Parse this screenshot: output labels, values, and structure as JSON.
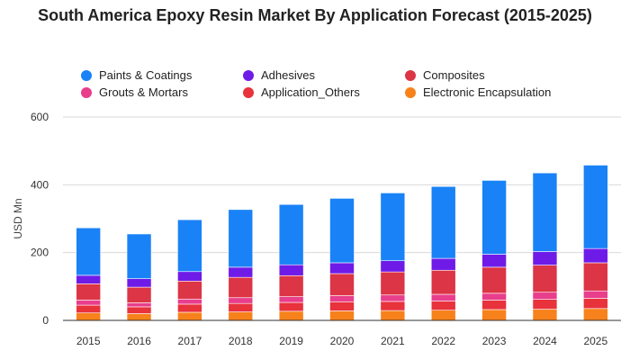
{
  "chart_data": {
    "type": "bar",
    "stacked": true,
    "title": "South America Epoxy Resin Market By Application Forecast (2015-2025)",
    "xlabel": "",
    "ylabel": "USD Mn",
    "ylim": [
      0,
      600
    ],
    "yticks": [
      0,
      200,
      400,
      600
    ],
    "grid": true,
    "legend_position": "top",
    "categories": [
      "2015",
      "2016",
      "2017",
      "2018",
      "2019",
      "2020",
      "2021",
      "2022",
      "2023",
      "2024",
      "2025"
    ],
    "series": [
      {
        "name": "Electronic Encapsulation",
        "color": "#f7821b",
        "values": [
          22,
          20,
          24,
          25,
          27,
          28,
          29,
          30,
          32,
          33,
          35
        ]
      },
      {
        "name": "Application_Others",
        "color": "#e8323c",
        "values": [
          23,
          20,
          24,
          25,
          26,
          27,
          27,
          27,
          28,
          29,
          30
        ]
      },
      {
        "name": "Grouts & Mortars",
        "color": "#e83e8c",
        "values": [
          15,
          12,
          15,
          17,
          17,
          18,
          19,
          20,
          20,
          21,
          22
        ]
      },
      {
        "name": "Composites",
        "color": "#dc3545",
        "values": [
          48,
          46,
          53,
          60,
          62,
          65,
          68,
          71,
          77,
          80,
          83
        ]
      },
      {
        "name": "Adhesives",
        "color": "#6f1be8",
        "values": [
          25,
          25,
          28,
          30,
          32,
          32,
          33,
          35,
          38,
          40,
          42
        ]
      },
      {
        "name": "Paints & Coatings",
        "color": "#1a82f7",
        "values": [
          140,
          132,
          153,
          170,
          178,
          190,
          200,
          212,
          218,
          232,
          246
        ]
      }
    ]
  },
  "legend": [
    {
      "label": "Paints & Coatings",
      "color": "#1a82f7"
    },
    {
      "label": "Adhesives",
      "color": "#6f1be8"
    },
    {
      "label": "Composites",
      "color": "#dc3545"
    },
    {
      "label": "Grouts & Mortars",
      "color": "#e83e8c"
    },
    {
      "label": "Application_Others",
      "color": "#e8323c"
    },
    {
      "label": "Electronic Encapsulation",
      "color": "#f7821b"
    }
  ]
}
